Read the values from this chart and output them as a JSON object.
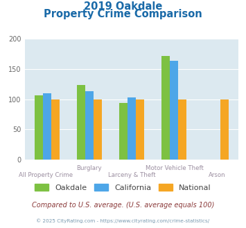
{
  "title_line1": "2019 Oakdale",
  "title_line2": "Property Crime Comparison",
  "series": {
    "Oakdale": [
      106,
      123,
      94,
      172,
      null
    ],
    "California": [
      110,
      113,
      103,
      163,
      null
    ],
    "National": [
      100,
      100,
      100,
      100,
      100
    ]
  },
  "colors": {
    "Oakdale": "#7dc142",
    "California": "#4da6e8",
    "National": "#f5a623"
  },
  "cat_top": [
    "",
    "Burglary",
    "",
    "Motor Vehicle Theft",
    ""
  ],
  "cat_bottom": [
    "All Property Crime",
    "",
    "Larceny & Theft",
    "",
    "Arson"
  ],
  "ylim": [
    0,
    200
  ],
  "yticks": [
    0,
    50,
    100,
    150,
    200
  ],
  "plot_bg_color": "#dce9f0",
  "grid_color": "#ffffff",
  "title_color": "#1a6aa8",
  "xtick_color": "#9b8ea0",
  "ytick_color": "#666666",
  "legend_color": "#444444",
  "footer_text": "Compared to U.S. average. (U.S. average equals 100)",
  "footer_color": "#8b3a3a",
  "credit_text": "© 2025 CityRating.com - https://www.cityrating.com/crime-statistics/",
  "credit_color": "#7a9ab0",
  "bar_width": 0.2
}
